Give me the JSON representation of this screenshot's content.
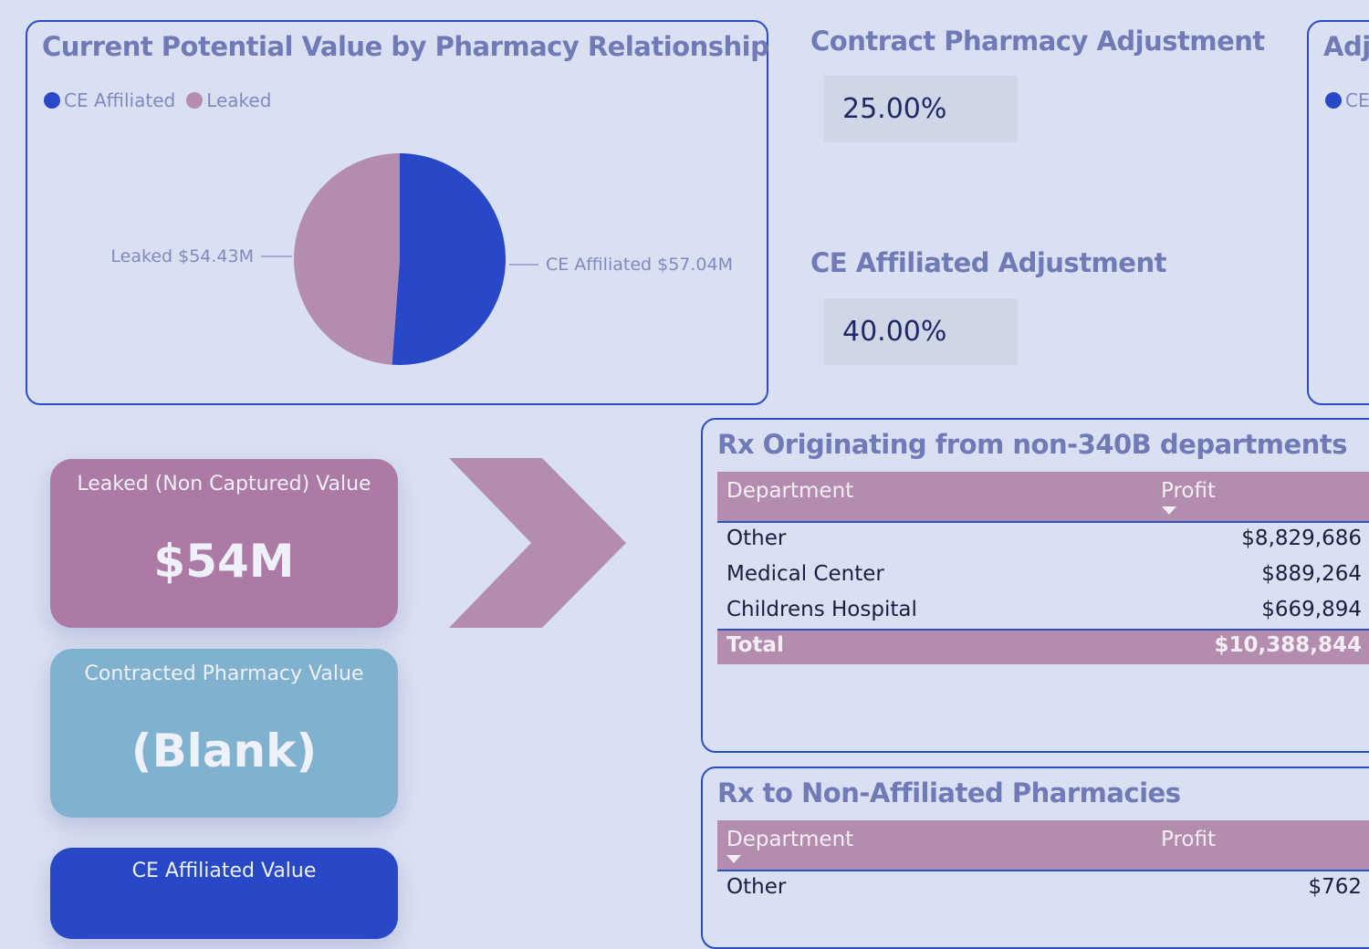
{
  "pie_panel": {
    "title": "Current Potential Value by Pharmacy Relationship",
    "legend": [
      {
        "label": "CE Affiliated",
        "color": "#2848c8"
      },
      {
        "label": "Leaked",
        "color": "#b48cae"
      }
    ],
    "leaked_label": "Leaked $54.43M",
    "affiliated_label": "CE Affiliated $57.04M"
  },
  "chart_data": {
    "type": "pie",
    "title": "Current Potential Value by Pharmacy Relationship",
    "slices": [
      {
        "label": "CE Affiliated",
        "value": 57.04,
        "unit": "$M",
        "color": "#2848c8"
      },
      {
        "label": "Leaked",
        "value": 54.43,
        "unit": "$M",
        "color": "#b48cae"
      }
    ],
    "legend_position": "top-left"
  },
  "contract_adjustment": {
    "title": "Contract Pharmacy Adjustment",
    "value": "25.00%"
  },
  "affiliated_adjustment": {
    "title": "CE Affiliated Adjustment",
    "value": "40.00%"
  },
  "right_panel": {
    "title": "Adju",
    "legend": "CE"
  },
  "cards": {
    "leaked": {
      "label": "Leaked (Non Captured) Value",
      "value": "$54M",
      "color": "#ac7aa4"
    },
    "contracted": {
      "label": "Contracted Pharmacy Value",
      "value": "(Blank)",
      "color": "#80b2d0"
    },
    "affiliated": {
      "label": "CE Affiliated Value",
      "color": "#2848c8"
    }
  },
  "non340b_table": {
    "title": "Rx Originating from non-340B departments",
    "col_department": "Department",
    "col_profit": "Profit",
    "rows": [
      {
        "department": "Other",
        "profit": "$8,829,686"
      },
      {
        "department": "Medical Center",
        "profit": "$889,264"
      },
      {
        "department": "Childrens Hospital",
        "profit": "$669,894"
      }
    ],
    "total_label": "Total",
    "total_value": "$10,388,844"
  },
  "nonaffiliated_table": {
    "title": "Rx to Non-Affiliated Pharmacies",
    "col_department": "Department",
    "col_profit": "Profit",
    "rows": [
      {
        "department": "Other",
        "profit": "$762"
      }
    ]
  }
}
